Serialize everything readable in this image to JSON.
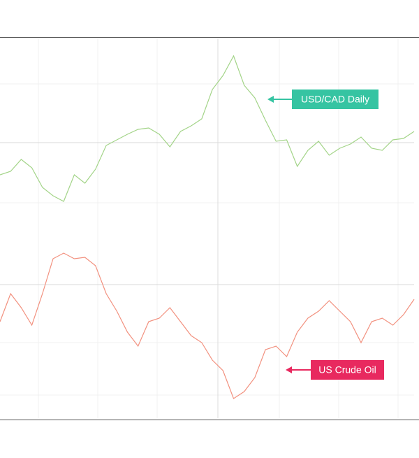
{
  "chart_data": [
    {
      "type": "line",
      "annotation": "USD/CAD Daily",
      "color": "#a3d488",
      "annotation_color": "#36c4a2",
      "ylim": [
        0,
        270
      ],
      "values": [
        75,
        80,
        97,
        85,
        57,
        45,
        37,
        75,
        63,
        83,
        117,
        125,
        133,
        140,
        142,
        133,
        115,
        137,
        145,
        155,
        197,
        217,
        245,
        203,
        185,
        153,
        123,
        125,
        87,
        110,
        123,
        103,
        113,
        119,
        129,
        113,
        110,
        125,
        127,
        137
      ]
    },
    {
      "type": "line",
      "annotation": "US Crude Oil",
      "color": "#f2917f",
      "annotation_color": "#e8295f",
      "ylim": [
        0,
        263
      ],
      "values": [
        138,
        178,
        158,
        133,
        178,
        228,
        236,
        228,
        230,
        218,
        178,
        153,
        123,
        103,
        138,
        143,
        158,
        138,
        118,
        108,
        83,
        68,
        28,
        38,
        58,
        98,
        103,
        88,
        123,
        143,
        153,
        168,
        153,
        138,
        108,
        138,
        143,
        133,
        148,
        170
      ]
    }
  ]
}
